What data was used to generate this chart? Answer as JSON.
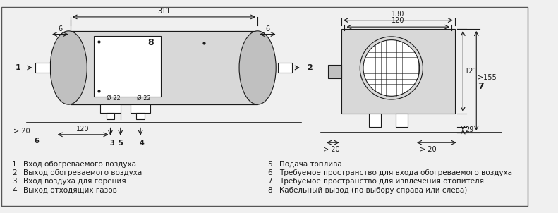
{
  "bg_color": "#f0f0f0",
  "line_color": "#1a1a1a",
  "legend_items_left": [
    [
      "1",
      "Вход обогреваемого воздуха"
    ],
    [
      "2",
      "Выход обогреваемого воздуха"
    ],
    [
      "3",
      "Вход воздуха для горения"
    ],
    [
      "4",
      "Выход отходящих газов"
    ]
  ],
  "legend_items_right": [
    [
      "5",
      "Подача топлива"
    ],
    [
      "6",
      "Требуемое пространство для входа обогреваемого воздуха"
    ],
    [
      "7",
      "Требуемое пространство для извлечения отопителя"
    ],
    [
      "8",
      "Кабельный вывод (по выбору справа или слева)"
    ]
  ]
}
